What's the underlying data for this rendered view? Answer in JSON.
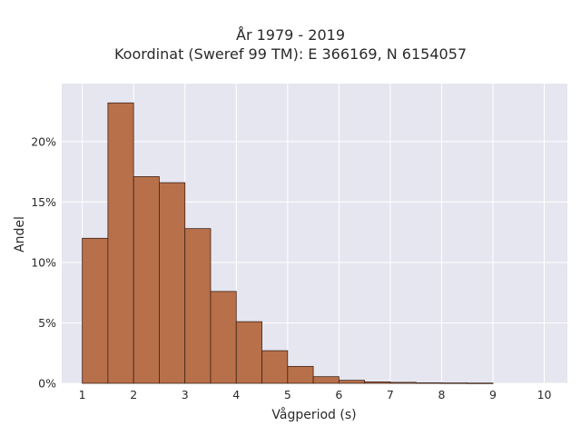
{
  "chart_data": {
    "type": "bar",
    "title": "År 1979 - 2019",
    "subtitle": "Koordinat (Sweref 99 TM): E 366169, N 6154057",
    "xlabel": "Vågperiod (s)",
    "ylabel": "Andel",
    "x_ticks": [
      "1",
      "2",
      "3",
      "4",
      "5",
      "6",
      "7",
      "8",
      "9",
      "10"
    ],
    "y_ticks": [
      "0%",
      "5%",
      "10%",
      "15%",
      "20%"
    ],
    "xlim": [
      0.6,
      10.45
    ],
    "ylim": [
      0,
      24.8
    ],
    "bin_width": 0.5,
    "bins": [
      {
        "start": 1.0,
        "value": 12.0
      },
      {
        "start": 1.5,
        "value": 23.2
      },
      {
        "start": 2.0,
        "value": 17.1
      },
      {
        "start": 2.5,
        "value": 16.6
      },
      {
        "start": 3.0,
        "value": 12.8
      },
      {
        "start": 3.5,
        "value": 7.6
      },
      {
        "start": 4.0,
        "value": 5.1
      },
      {
        "start": 4.5,
        "value": 2.7
      },
      {
        "start": 5.0,
        "value": 1.4
      },
      {
        "start": 5.5,
        "value": 0.55
      },
      {
        "start": 6.0,
        "value": 0.25
      },
      {
        "start": 6.5,
        "value": 0.12
      },
      {
        "start": 7.0,
        "value": 0.08
      },
      {
        "start": 7.5,
        "value": 0.04
      },
      {
        "start": 8.0,
        "value": 0.03
      },
      {
        "start": 8.5,
        "value": 0.02
      }
    ],
    "grid": true,
    "colors": {
      "bar_fill": "#b8704a",
      "bar_stroke": "#3d2418",
      "plot_background": "#e6e6f0",
      "grid": "#ffffff"
    }
  }
}
